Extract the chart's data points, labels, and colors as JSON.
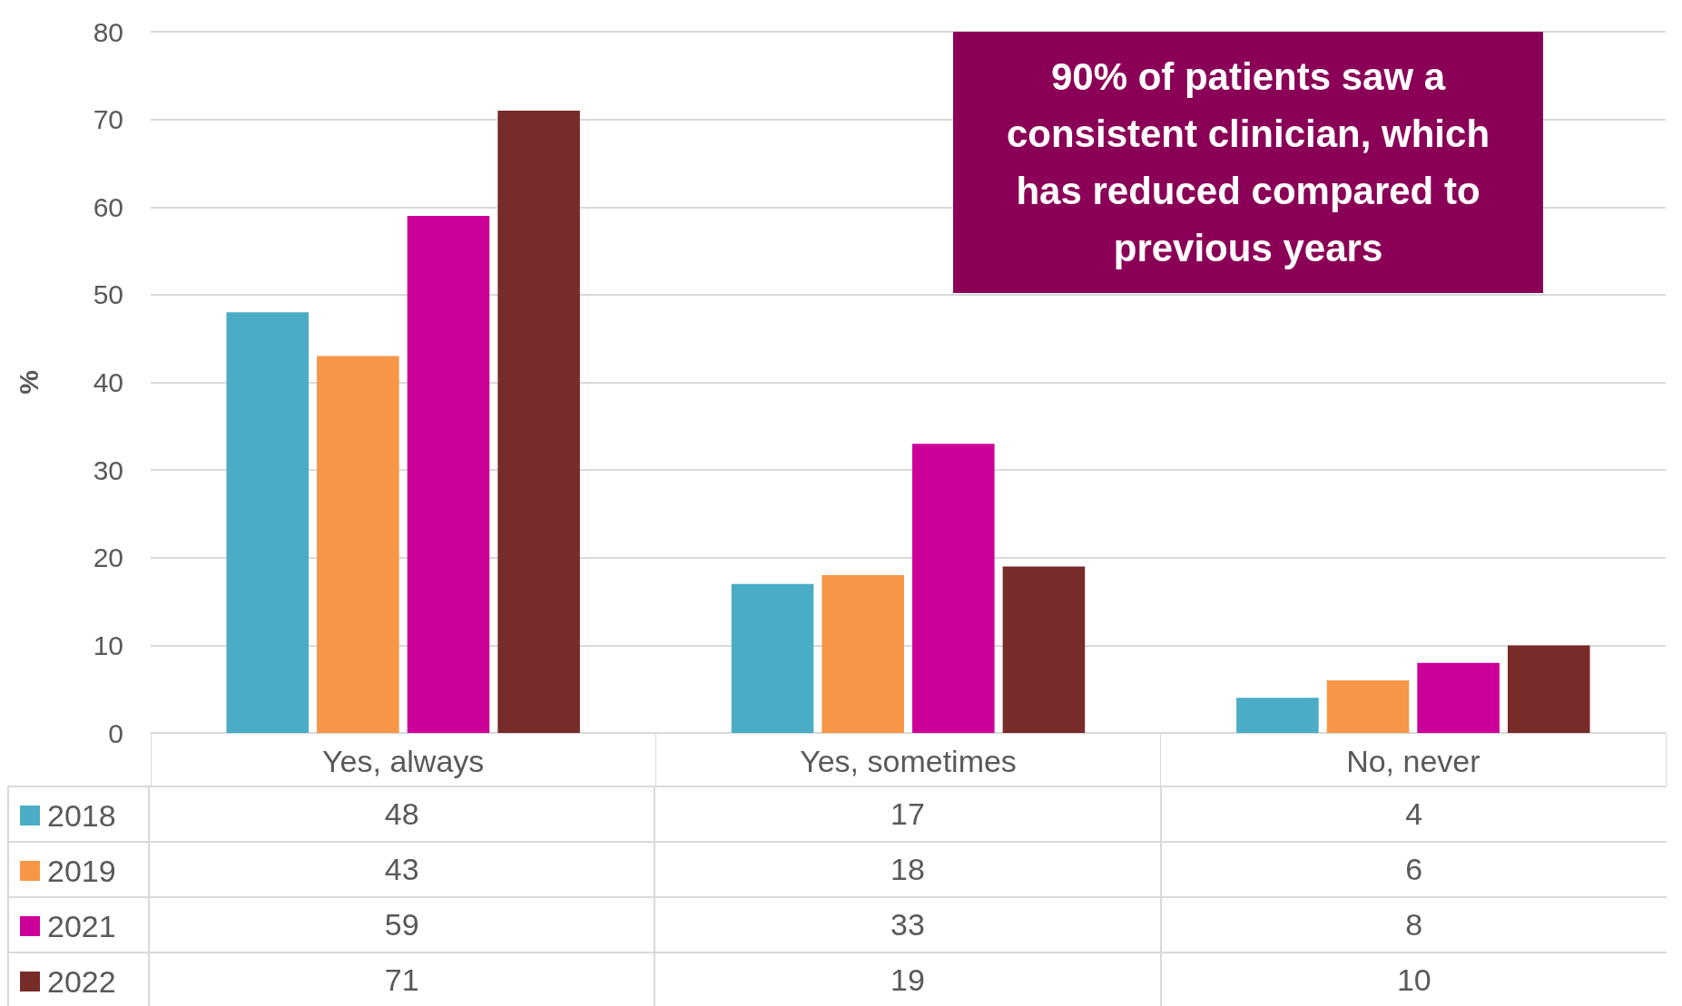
{
  "chart_data": {
    "type": "bar",
    "ylabel": "%",
    "categories": [
      "Yes, always",
      "Yes, sometimes",
      "No, never"
    ],
    "series": [
      {
        "name": "2018",
        "color": "#4bacc6",
        "values": [
          48,
          17,
          4
        ]
      },
      {
        "name": "2019",
        "color": "#f79646",
        "values": [
          43,
          18,
          6
        ]
      },
      {
        "name": "2021",
        "color": "#cc0099",
        "values": [
          59,
          33,
          8
        ]
      },
      {
        "name": "2022",
        "color": "#772c2a",
        "values": [
          71,
          19,
          10
        ]
      }
    ],
    "ylim": [
      0,
      80
    ],
    "yticks": [
      0,
      10,
      20,
      30,
      40,
      50,
      60,
      70,
      80
    ],
    "grid": "y",
    "legend": "bottom",
    "data_labels": true,
    "annotations": [
      "90% of patients saw a consistent clinician, which has reduced compared to previous years"
    ]
  }
}
